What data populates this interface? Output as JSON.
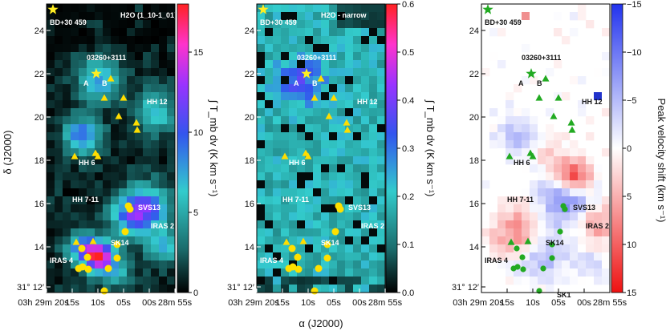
{
  "chart_data": [
    {
      "type": "heatmap",
      "panel": "left",
      "title": "H2O (1_10-1_01)",
      "colorbar_label": "∫ T_mb dv (K km s⁻¹)",
      "colorbar_range": [
        0,
        18
      ],
      "colorbar_ticks": [
        "0",
        "5",
        "10",
        "15"
      ],
      "colormap": [
        "#000000",
        "#1a6b6b",
        "#33cccc",
        "#3355ee",
        "#9933ff",
        "#ff33cc",
        "#ff2222"
      ],
      "ylabel": "δ (J2000)",
      "yticks": [
        "24",
        "22",
        "20",
        "18",
        "16",
        "14",
        "31° 12′"
      ],
      "xticks": [
        "03h 29m 20s",
        "15s",
        "10s",
        "05s",
        "00s",
        "28m 55s"
      ]
    },
    {
      "type": "heatmap",
      "panel": "middle",
      "title": "H2O - narrow",
      "colorbar_label": "∫ T_mb dv (K km s⁻¹)",
      "colorbar_range": [
        0,
        0.6
      ],
      "colorbar_ticks": [
        "0.0",
        "0.1",
        "0.2",
        "0.3",
        "0.4",
        "0.5",
        "0.6"
      ],
      "colormap": [
        "#000000",
        "#1a6b6b",
        "#33cccc",
        "#3355ee",
        "#9933ff",
        "#ff33cc",
        "#ff2222"
      ],
      "xlabel": "α (J2000)",
      "yticks": [
        "24",
        "22",
        "20",
        "18",
        "16",
        "14",
        "31° 12′"
      ],
      "xticks": [
        "03h 29m 20s",
        "15s",
        "10s",
        "05s",
        "00s",
        "28m 55s"
      ]
    },
    {
      "type": "heatmap",
      "panel": "right",
      "colorbar_label": "Peak velocity shift (km s⁻¹)",
      "colorbar_range": [
        15,
        -15
      ],
      "colorbar_ticks": [
        "−15",
        "−10",
        "−5",
        "0",
        "5",
        "10",
        "15"
      ],
      "colormap": [
        "#2233ee",
        "#ffffff",
        "#ee1111"
      ],
      "yticks": [
        "24",
        "22",
        "20",
        "18",
        "16",
        "14",
        "31° 12′"
      ],
      "xticks": [
        "03h 29m 20s",
        "15s",
        "10s",
        "05s",
        "00s",
        "28m 55s"
      ]
    }
  ],
  "sources": {
    "bd": "BD+30 459",
    "iras03260": "03260+3111",
    "a": "A",
    "b": "B",
    "hh12": "HH 12",
    "hh6": "HH 6",
    "hh711": "HH 7-11",
    "svs13": "SVS13",
    "iras2": "IRAS 2",
    "sk14": "SK14",
    "iras4": "IRAS 4",
    "sk1": "SK1"
  },
  "axis_labels": {
    "alpha": "α (J2000)",
    "delta": "δ (J2000)"
  },
  "colors": {
    "star": "#ffee22",
    "triangle": "#ffdd00",
    "dot": "#ffe000",
    "green": "#22aa22"
  }
}
